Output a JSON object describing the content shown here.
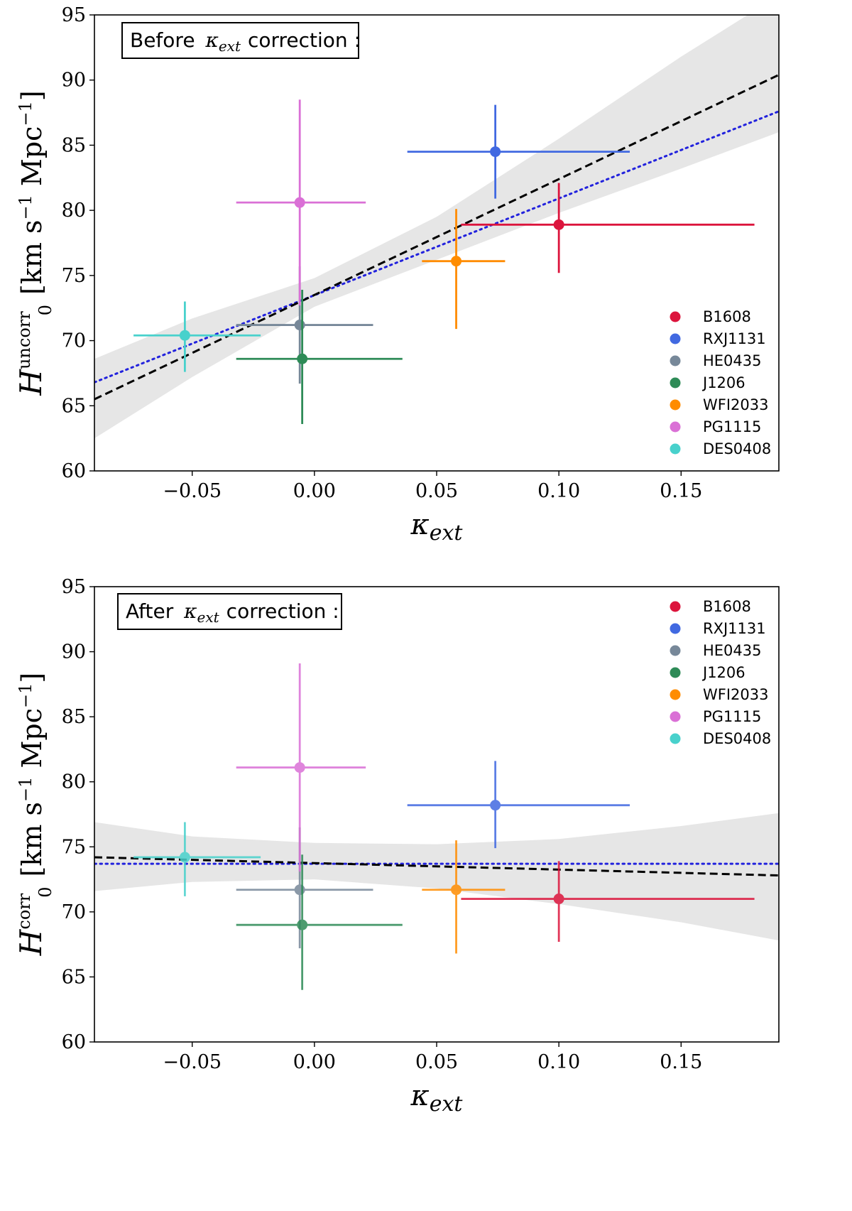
{
  "chart_data": [
    {
      "type": "scatter",
      "annotation": {
        "prefix": "Before",
        "kappa": "κ",
        "sub": "ext",
        "suffix": "correction :"
      },
      "ylabel": {
        "H": "H",
        "sub": "0",
        "sup": "uncorr",
        "units": "[km s",
        "exp": "−1",
        "units2": " Mpc",
        "exp2": "−1",
        "close": "]"
      },
      "xlabel": {
        "kappa": "κ",
        "sub": "ext"
      },
      "xlim": [
        -0.09,
        0.19
      ],
      "ylim": [
        60,
        95
      ],
      "xticks": [
        -0.05,
        0.0,
        0.05,
        0.1,
        0.15
      ],
      "xtick_labels": [
        "−0.05",
        "0.00",
        "0.05",
        "0.10",
        "0.15"
      ],
      "yticks": [
        60,
        65,
        70,
        75,
        80,
        85,
        90,
        95
      ],
      "ytick_labels": [
        "60",
        "65",
        "70",
        "75",
        "80",
        "85",
        "90",
        "95"
      ],
      "points": [
        {
          "name": "B1608",
          "color": "#dc143c",
          "x": 0.1,
          "y": 78.9,
          "xerr": [
            0.04,
            0.08
          ],
          "yerr": [
            3.7,
            3.2
          ]
        },
        {
          "name": "RXJ1131",
          "color": "#4169e1",
          "x": 0.074,
          "y": 84.5,
          "xerr": [
            0.036,
            0.055
          ],
          "yerr": [
            3.6,
            3.6
          ]
        },
        {
          "name": "HE0435",
          "color": "#778899",
          "x": -0.006,
          "y": 71.2,
          "xerr": [
            0.026,
            0.03
          ],
          "yerr": [
            4.5,
            4.5
          ]
        },
        {
          "name": "J1206",
          "color": "#2e8b57",
          "x": -0.005,
          "y": 68.6,
          "xerr": [
            0.027,
            0.041
          ],
          "yerr": [
            5.0,
            5.3
          ]
        },
        {
          "name": "WFI2033",
          "color": "#ff8c00",
          "x": 0.058,
          "y": 76.1,
          "xerr": [
            0.014,
            0.02
          ],
          "yerr": [
            5.2,
            4.0
          ]
        },
        {
          "name": "PG1115",
          "color": "#da70d6",
          "x": -0.006,
          "y": 80.6,
          "xerr": [
            0.026,
            0.027
          ],
          "yerr": [
            7.9,
            7.9
          ]
        },
        {
          "name": "DES0408",
          "color": "#48d1cc",
          "x": -0.053,
          "y": 70.4,
          "xerr": [
            0.021,
            0.031
          ],
          "yerr": [
            2.8,
            2.6
          ]
        }
      ],
      "fit_dashed": {
        "x": [
          -0.09,
          0.19
        ],
        "y": [
          65.5,
          90.4
        ]
      },
      "fit_dotted": {
        "x": [
          -0.09,
          0.19
        ],
        "y": [
          66.8,
          87.6
        ]
      },
      "band": {
        "x": [
          -0.09,
          -0.05,
          0.0,
          0.05,
          0.1,
          0.15,
          0.19
        ],
        "upper": [
          68.6,
          71.7,
          74.8,
          79.5,
          85.5,
          91.8,
          96.5
        ],
        "lower": [
          62.5,
          67.2,
          72.6,
          76.2,
          79.8,
          83.2,
          86.0
        ]
      },
      "legend": [
        "B1608",
        "RXJ1131",
        "HE0435",
        "J1206",
        "WFI2033",
        "PG1115",
        "DES0408"
      ],
      "legend_position": "lower-right"
    },
    {
      "type": "scatter",
      "annotation": {
        "prefix": "After",
        "kappa": "κ",
        "sub": "ext",
        "suffix": "correction :"
      },
      "ylabel": {
        "H": "H",
        "sub": "0",
        "sup": "corr",
        "units": "[km s",
        "exp": "−1",
        "units2": " Mpc",
        "exp2": "−1",
        "close": "]"
      },
      "xlabel": {
        "kappa": "κ",
        "sub": "ext"
      },
      "xlim": [
        -0.09,
        0.19
      ],
      "ylim": [
        60,
        95
      ],
      "xticks": [
        -0.05,
        0.0,
        0.05,
        0.1,
        0.15
      ],
      "xtick_labels": [
        "−0.05",
        "0.00",
        "0.05",
        "0.10",
        "0.15"
      ],
      "yticks": [
        60,
        65,
        70,
        75,
        80,
        85,
        90,
        95
      ],
      "ytick_labels": [
        "60",
        "65",
        "70",
        "75",
        "80",
        "85",
        "90",
        "95"
      ],
      "points": [
        {
          "name": "B1608",
          "color": "#dc143c",
          "x": 0.1,
          "y": 71.0,
          "xerr": [
            0.04,
            0.08
          ],
          "yerr": [
            3.3,
            2.9
          ]
        },
        {
          "name": "RXJ1131",
          "color": "#4169e1",
          "x": 0.074,
          "y": 78.2,
          "xerr": [
            0.036,
            0.055
          ],
          "yerr": [
            3.3,
            3.4
          ]
        },
        {
          "name": "HE0435",
          "color": "#778899",
          "x": -0.006,
          "y": 71.7,
          "xerr": [
            0.026,
            0.03
          ],
          "yerr": [
            4.5,
            4.8
          ]
        },
        {
          "name": "J1206",
          "color": "#2e8b57",
          "x": -0.005,
          "y": 69.0,
          "xerr": [
            0.027,
            0.041
          ],
          "yerr": [
            5.0,
            5.4
          ]
        },
        {
          "name": "WFI2033",
          "color": "#ff8c00",
          "x": 0.058,
          "y": 71.7,
          "xerr": [
            0.014,
            0.02
          ],
          "yerr": [
            4.9,
            3.8
          ]
        },
        {
          "name": "PG1115",
          "color": "#da70d6",
          "x": -0.006,
          "y": 81.1,
          "xerr": [
            0.026,
            0.027
          ],
          "yerr": [
            8.0,
            8.0
          ]
        },
        {
          "name": "DES0408",
          "color": "#48d1cc",
          "x": -0.053,
          "y": 74.2,
          "xerr": [
            0.021,
            0.031
          ],
          "yerr": [
            3.0,
            2.7
          ]
        }
      ],
      "fit_dashed": {
        "x": [
          -0.09,
          0.19
        ],
        "y": [
          74.2,
          72.8
        ]
      },
      "fit_dotted": {
        "x": [
          -0.09,
          0.19
        ],
        "y": [
          73.7,
          73.7
        ]
      },
      "band": {
        "x": [
          -0.09,
          -0.05,
          0.0,
          0.05,
          0.1,
          0.15,
          0.19
        ],
        "upper": [
          76.9,
          75.8,
          75.3,
          75.2,
          75.6,
          76.6,
          77.6
        ],
        "lower": [
          71.6,
          72.3,
          72.5,
          71.8,
          70.6,
          69.2,
          67.8
        ]
      },
      "legend": [
        "B1608",
        "RXJ1131",
        "HE0435",
        "J1206",
        "WFI2033",
        "PG1115",
        "DES0408"
      ],
      "legend_position": "top-right"
    }
  ]
}
